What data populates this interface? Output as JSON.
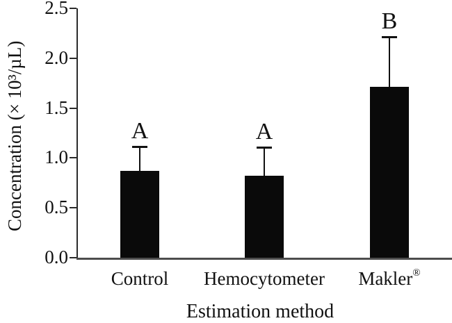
{
  "figure": {
    "background": "#ffffff",
    "text_color": "#111111"
  },
  "chart_data": {
    "type": "bar",
    "title": "",
    "xlabel": "Estimation method",
    "ylabel": "Concentration (× 10³/µL)",
    "categories": [
      "Control",
      "Hemocytometer",
      "Makler"
    ],
    "category_superscripts": [
      "",
      "",
      "®"
    ],
    "values": [
      0.87,
      0.82,
      1.71
    ],
    "upper_errors": [
      0.24,
      0.28,
      0.5
    ],
    "error_bars": "upper-only",
    "significance_letters": [
      "A",
      "A",
      "B"
    ],
    "ylim": [
      0,
      2.5
    ],
    "y_ticks": [
      0.0,
      0.5,
      1.0,
      1.5,
      2.0,
      2.5
    ],
    "y_tick_labels": [
      "0.0",
      "0.5",
      "1.0",
      "1.5",
      "2.0",
      "2.5"
    ],
    "bar_color": "#0a0a0a",
    "axis_color": "#2b2b2b",
    "grid": false,
    "legend": null
  }
}
